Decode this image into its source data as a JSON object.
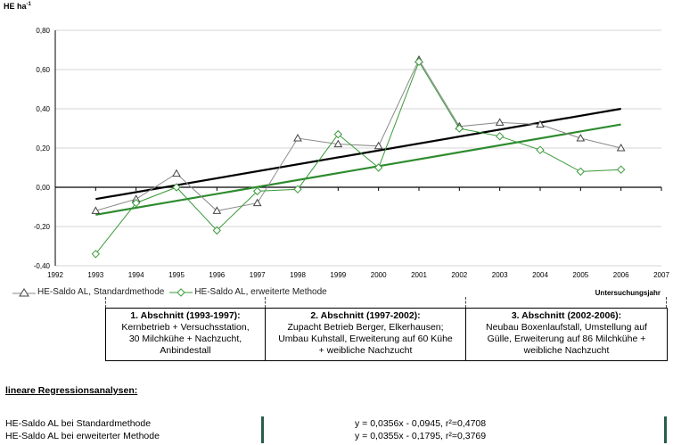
{
  "chart_data": {
    "type": "line",
    "y_unit": "HE ha",
    "y_unit_exp": "-1",
    "xlabel": "Untersuchungsjahr",
    "xlim": [
      1992,
      2007
    ],
    "ylim": [
      -0.4,
      0.8
    ],
    "x_ticks": [
      "1992",
      "1993",
      "1994",
      "1995",
      "1996",
      "1997",
      "1998",
      "1999",
      "2000",
      "2001",
      "2002",
      "2003",
      "2004",
      "2005",
      "2006",
      "2007"
    ],
    "y_ticks": [
      "0,80",
      "0,60",
      "0,40",
      "0,20",
      "0,00",
      "-0,20",
      "-0,40"
    ],
    "series": [
      {
        "name": "HE-Saldo AL, Standardmethode",
        "color": "#8a8a8a",
        "marker": "triangle",
        "x": [
          1993,
          1994,
          1995,
          1996,
          1997,
          1998,
          1999,
          2000,
          2001,
          2002,
          2003,
          2004,
          2005,
          2006
        ],
        "y": [
          -0.12,
          -0.06,
          0.07,
          -0.12,
          -0.08,
          0.25,
          0.22,
          0.21,
          0.65,
          0.31,
          0.33,
          0.32,
          0.25,
          0.2
        ]
      },
      {
        "name": "HE-Saldo AL, erweiterte Methode",
        "color": "#3a9a3a",
        "marker": "diamond",
        "x": [
          1993,
          1994,
          1995,
          1996,
          1997,
          1998,
          1999,
          2000,
          2001,
          2002,
          2003,
          2004,
          2005,
          2006
        ],
        "y": [
          -0.34,
          -0.08,
          0.0,
          -0.22,
          -0.02,
          -0.01,
          0.27,
          0.1,
          0.64,
          0.3,
          0.26,
          0.19,
          0.08,
          0.09
        ]
      }
    ],
    "trendlines": [
      {
        "color": "#000000",
        "x": [
          1993,
          2006
        ],
        "y": [
          -0.06,
          0.4
        ]
      },
      {
        "color": "#2e8b2e",
        "x": [
          1993,
          2006
        ],
        "y": [
          -0.14,
          0.32
        ]
      }
    ]
  },
  "phases": [
    {
      "title": "1. Abschnitt (1993-1997):",
      "lines": [
        "Kernbetrieb + Versuchsstation,",
        "30 Milchkühe + Nachzucht,",
        "Anbindestall"
      ]
    },
    {
      "title": "2. Abschnitt (1997-2002):",
      "lines": [
        "Zupacht Betrieb Berger, Elkerhausen;",
        "Umbau Kuhstall, Erweiterung auf 60 Kühe",
        "+ weibliche Nachzucht"
      ]
    },
    {
      "title": "3. Abschnitt (2002-2006):",
      "lines": [
        "Neubau Boxenlaufstall, Umstellung auf",
        "Gülle, Erweiterung auf 86 Milchkühe +",
        "weibliche Nachzucht"
      ]
    }
  ],
  "regression": {
    "heading": "lineare Regressionsanalysen:",
    "rows": [
      {
        "label": "HE-Saldo AL bei Standardmethode",
        "equation": "y = 0,0356x - 0,0945, r²=0,4708"
      },
      {
        "label": "HE-Saldo AL bei erweiterter Methode",
        "equation": "y = 0,0355x - 0,1795, r²=0,3769"
      }
    ]
  }
}
